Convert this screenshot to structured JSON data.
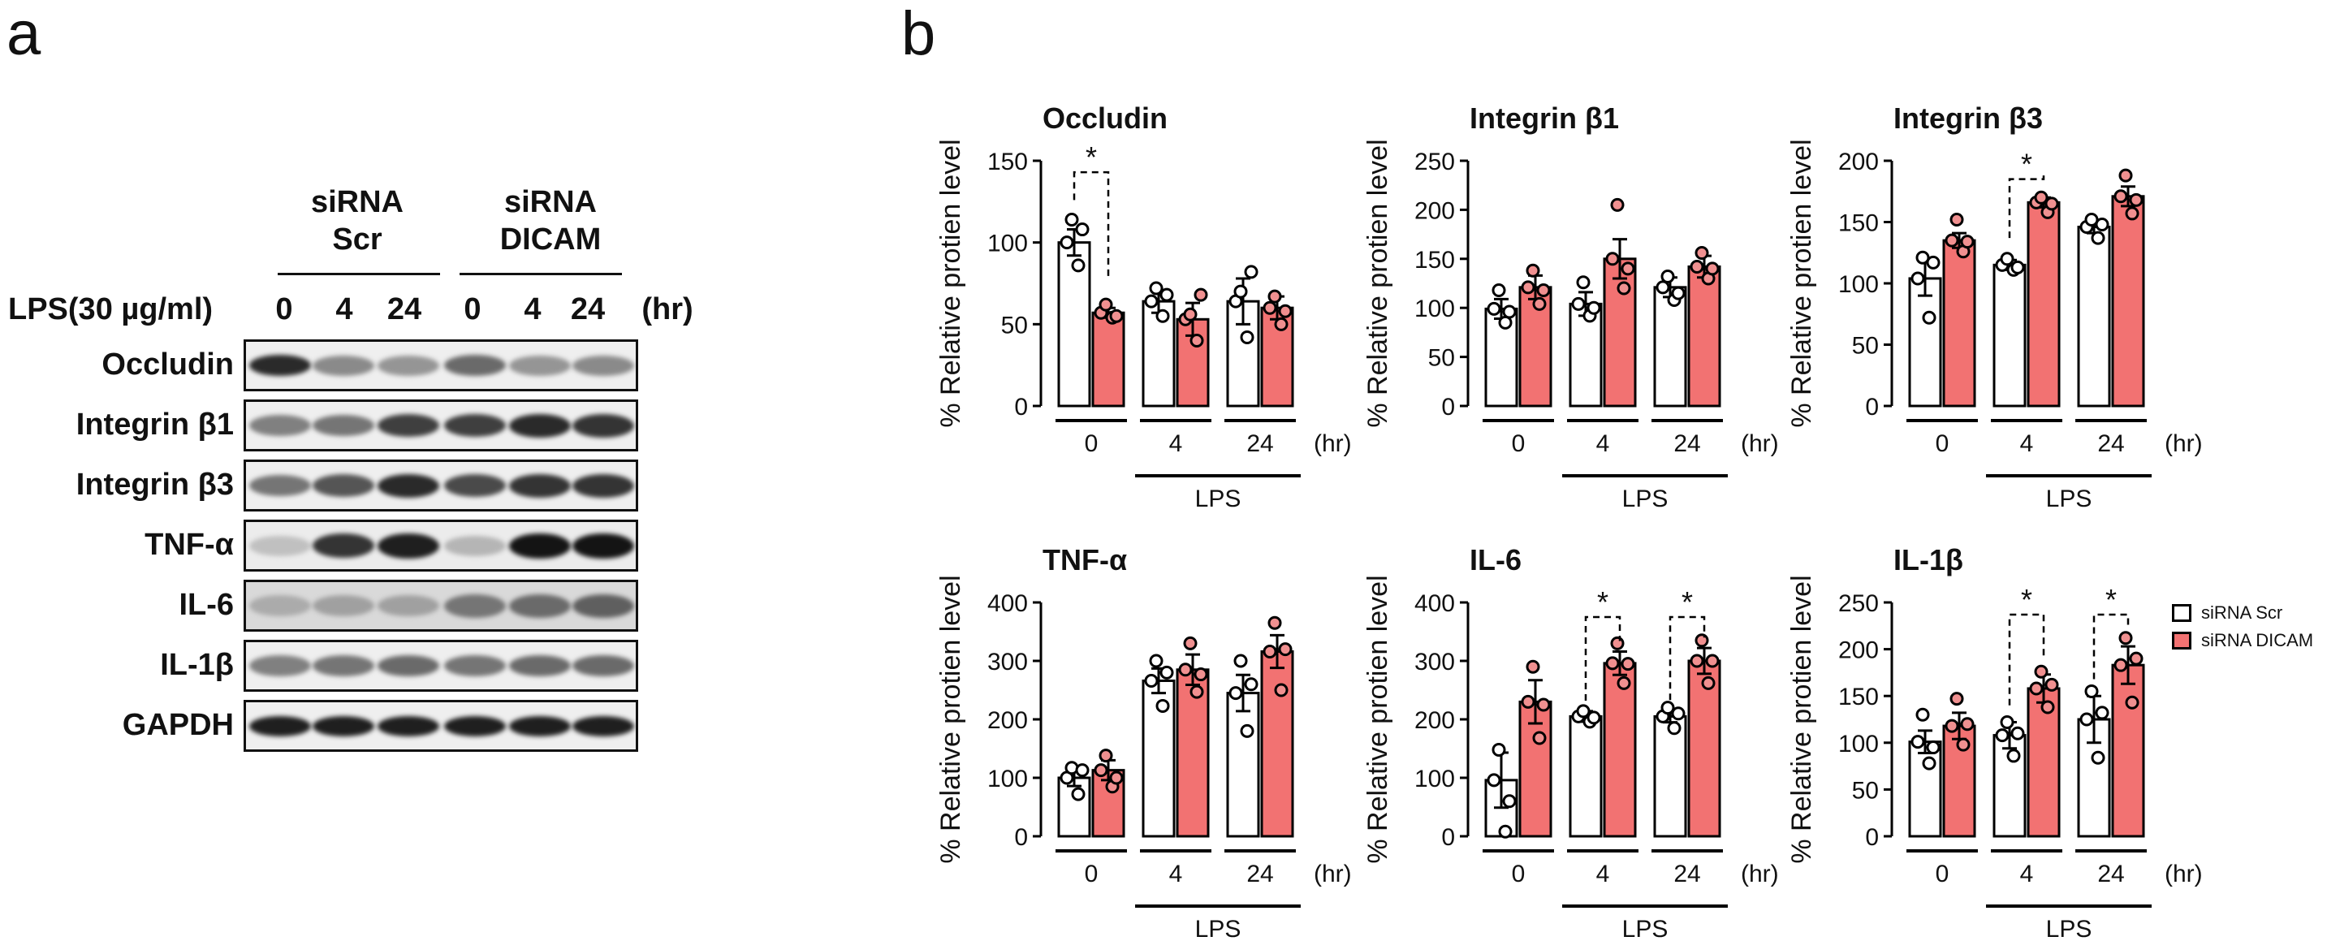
{
  "panel_a": {
    "label": "a",
    "groups": [
      "siRNA\nScr",
      "siRNA\nDICAM"
    ],
    "lps_label": "LPS(30 µg/ml)",
    "lanes": [
      "0",
      "4",
      "24",
      "0",
      "4",
      "24"
    ],
    "unit": "(hr)",
    "rows": [
      "Occludin",
      "Integrin β1",
      "Integrin β3",
      "TNF-α",
      "IL-6",
      "IL-1β",
      "GAPDH"
    ]
  },
  "panel_b": {
    "label": "b",
    "ylabel": "% Relative protien level",
    "xticks": [
      "0",
      "4",
      "24"
    ],
    "xunit": "(hr)",
    "lps_label": "LPS",
    "sig_mark": "*",
    "legend": [
      "siRNA Scr",
      "siRNA DICAM"
    ],
    "colors": {
      "scr": "#ffffff",
      "dicam": "#f27272",
      "edge": "#000000"
    }
  },
  "chart_data": [
    {
      "type": "bar",
      "title": "Occludin",
      "categories": [
        "0",
        "4",
        "24"
      ],
      "ylim": [
        0,
        150
      ],
      "ticks": [
        0,
        50,
        100,
        150
      ],
      "series": [
        {
          "name": "siRNA Scr",
          "values": [
            100,
            64,
            64
          ],
          "errors": [
            8,
            7,
            14
          ],
          "points": [
            [
              100,
              86,
              114,
              108
            ],
            [
              64,
              55,
              72,
              68
            ],
            [
              64,
              42,
              70,
              82
            ]
          ]
        },
        {
          "name": "siRNA DICAM",
          "values": [
            57,
            53,
            60
          ],
          "errors": [
            3,
            10,
            7
          ],
          "points": [
            [
              57,
              54,
              62,
              55
            ],
            [
              53,
              40,
              56,
              68
            ],
            [
              60,
              50,
              67,
              58
            ]
          ]
        }
      ],
      "significance": [
        0
      ],
      "sig_height": 143
    },
    {
      "type": "bar",
      "title": "Integrin β1",
      "categories": [
        "0",
        "4",
        "24"
      ],
      "ylim": [
        0,
        250
      ],
      "ticks": [
        0,
        50,
        100,
        150,
        200,
        250
      ],
      "series": [
        {
          "name": "siRNA Scr",
          "values": [
            99,
            104,
            121
          ],
          "errors": [
            10,
            12,
            10
          ],
          "points": [
            [
              99,
              85,
              118,
              96
            ],
            [
              104,
              92,
              126,
              100
            ],
            [
              121,
              108,
              132,
              115
            ]
          ]
        },
        {
          "name": "siRNA DICAM",
          "values": [
            121,
            150,
            142
          ],
          "errors": [
            12,
            20,
            11
          ],
          "points": [
            [
              121,
              104,
              138,
              118
            ],
            [
              150,
              120,
              205,
              140
            ],
            [
              142,
              130,
              156,
              140
            ]
          ]
        }
      ],
      "significance": []
    },
    {
      "type": "bar",
      "title": "Integrin β3",
      "categories": [
        "0",
        "4",
        "24"
      ],
      "ylim": [
        0,
        200
      ],
      "ticks": [
        0,
        50,
        100,
        150,
        200
      ],
      "series": [
        {
          "name": "siRNA Scr",
          "values": [
            104,
            115,
            146
          ],
          "errors": [
            14,
            4,
            5
          ],
          "points": [
            [
              104,
              72,
              121,
              117
            ],
            [
              115,
              111,
              120,
              113
            ],
            [
              146,
              137,
              152,
              148
            ]
          ]
        },
        {
          "name": "siRNA DICAM",
          "values": [
            135,
            166,
            171
          ],
          "errors": [
            6,
            4,
            8
          ],
          "points": [
            [
              135,
              126,
              152,
              134
            ],
            [
              166,
              158,
              170,
              165
            ],
            [
              171,
              157,
              188,
              168
            ]
          ]
        }
      ],
      "significance": [
        1
      ],
      "sig_height": 185
    },
    {
      "type": "bar",
      "title": "TNF-α",
      "categories": [
        "0",
        "4",
        "24"
      ],
      "ylim": [
        0,
        400
      ],
      "ticks": [
        0,
        100,
        200,
        300,
        400
      ],
      "series": [
        {
          "name": "siRNA Scr",
          "values": [
            100,
            266,
            245
          ],
          "errors": [
            14,
            21,
            31
          ],
          "points": [
            [
              100,
              72,
              117,
              113
            ],
            [
              266,
              223,
              300,
              280
            ],
            [
              245,
              180,
              300,
              260
            ]
          ]
        },
        {
          "name": "siRNA DICAM",
          "values": [
            113,
            285,
            316
          ],
          "errors": [
            17,
            26,
            28
          ],
          "points": [
            [
              113,
              85,
              138,
              100
            ],
            [
              285,
              247,
              330,
              277
            ],
            [
              316,
              250,
              365,
              320
            ]
          ]
        }
      ],
      "significance": []
    },
    {
      "type": "bar",
      "title": "IL-6",
      "categories": [
        "0",
        "4",
        "24"
      ],
      "ylim": [
        0,
        400
      ],
      "ticks": [
        0,
        100,
        200,
        300,
        400
      ],
      "series": [
        {
          "name": "siRNA Scr",
          "values": [
            96,
            205,
            205
          ],
          "errors": [
            47,
            9,
            10
          ],
          "points": [
            [
              96,
              8,
              148,
              60
            ],
            [
              205,
              196,
              214,
              203
            ],
            [
              205,
              185,
              220,
              210
            ]
          ]
        },
        {
          "name": "siRNA DICAM",
          "values": [
            230,
            296,
            300
          ],
          "errors": [
            37,
            20,
            22
          ],
          "points": [
            [
              230,
              168,
              290,
              225
            ],
            [
              296,
              262,
              330,
              295
            ],
            [
              300,
              262,
              335,
              300
            ]
          ]
        }
      ],
      "significance": [
        1,
        2
      ],
      "sig_height": 375
    },
    {
      "type": "bar",
      "title": "IL-1β",
      "categories": [
        "0",
        "4",
        "24"
      ],
      "ylim": [
        0,
        250
      ],
      "ticks": [
        0,
        50,
        100,
        150,
        200,
        250
      ],
      "series": [
        {
          "name": "siRNA Scr",
          "values": [
            101,
            108,
            125
          ],
          "errors": [
            12,
            14,
            25
          ],
          "points": [
            [
              101,
              78,
              130,
              95
            ],
            [
              108,
              86,
              122,
              110
            ],
            [
              125,
              84,
              155,
              132
            ]
          ]
        },
        {
          "name": "siRNA DICAM",
          "values": [
            118,
            158,
            183
          ],
          "errors": [
            14,
            15,
            20
          ],
          "points": [
            [
              118,
              98,
              147,
              120
            ],
            [
              158,
              138,
              176,
              162
            ],
            [
              183,
              143,
              212,
              190
            ]
          ]
        }
      ],
      "significance": [
        1,
        2
      ],
      "sig_height": 237
    }
  ]
}
